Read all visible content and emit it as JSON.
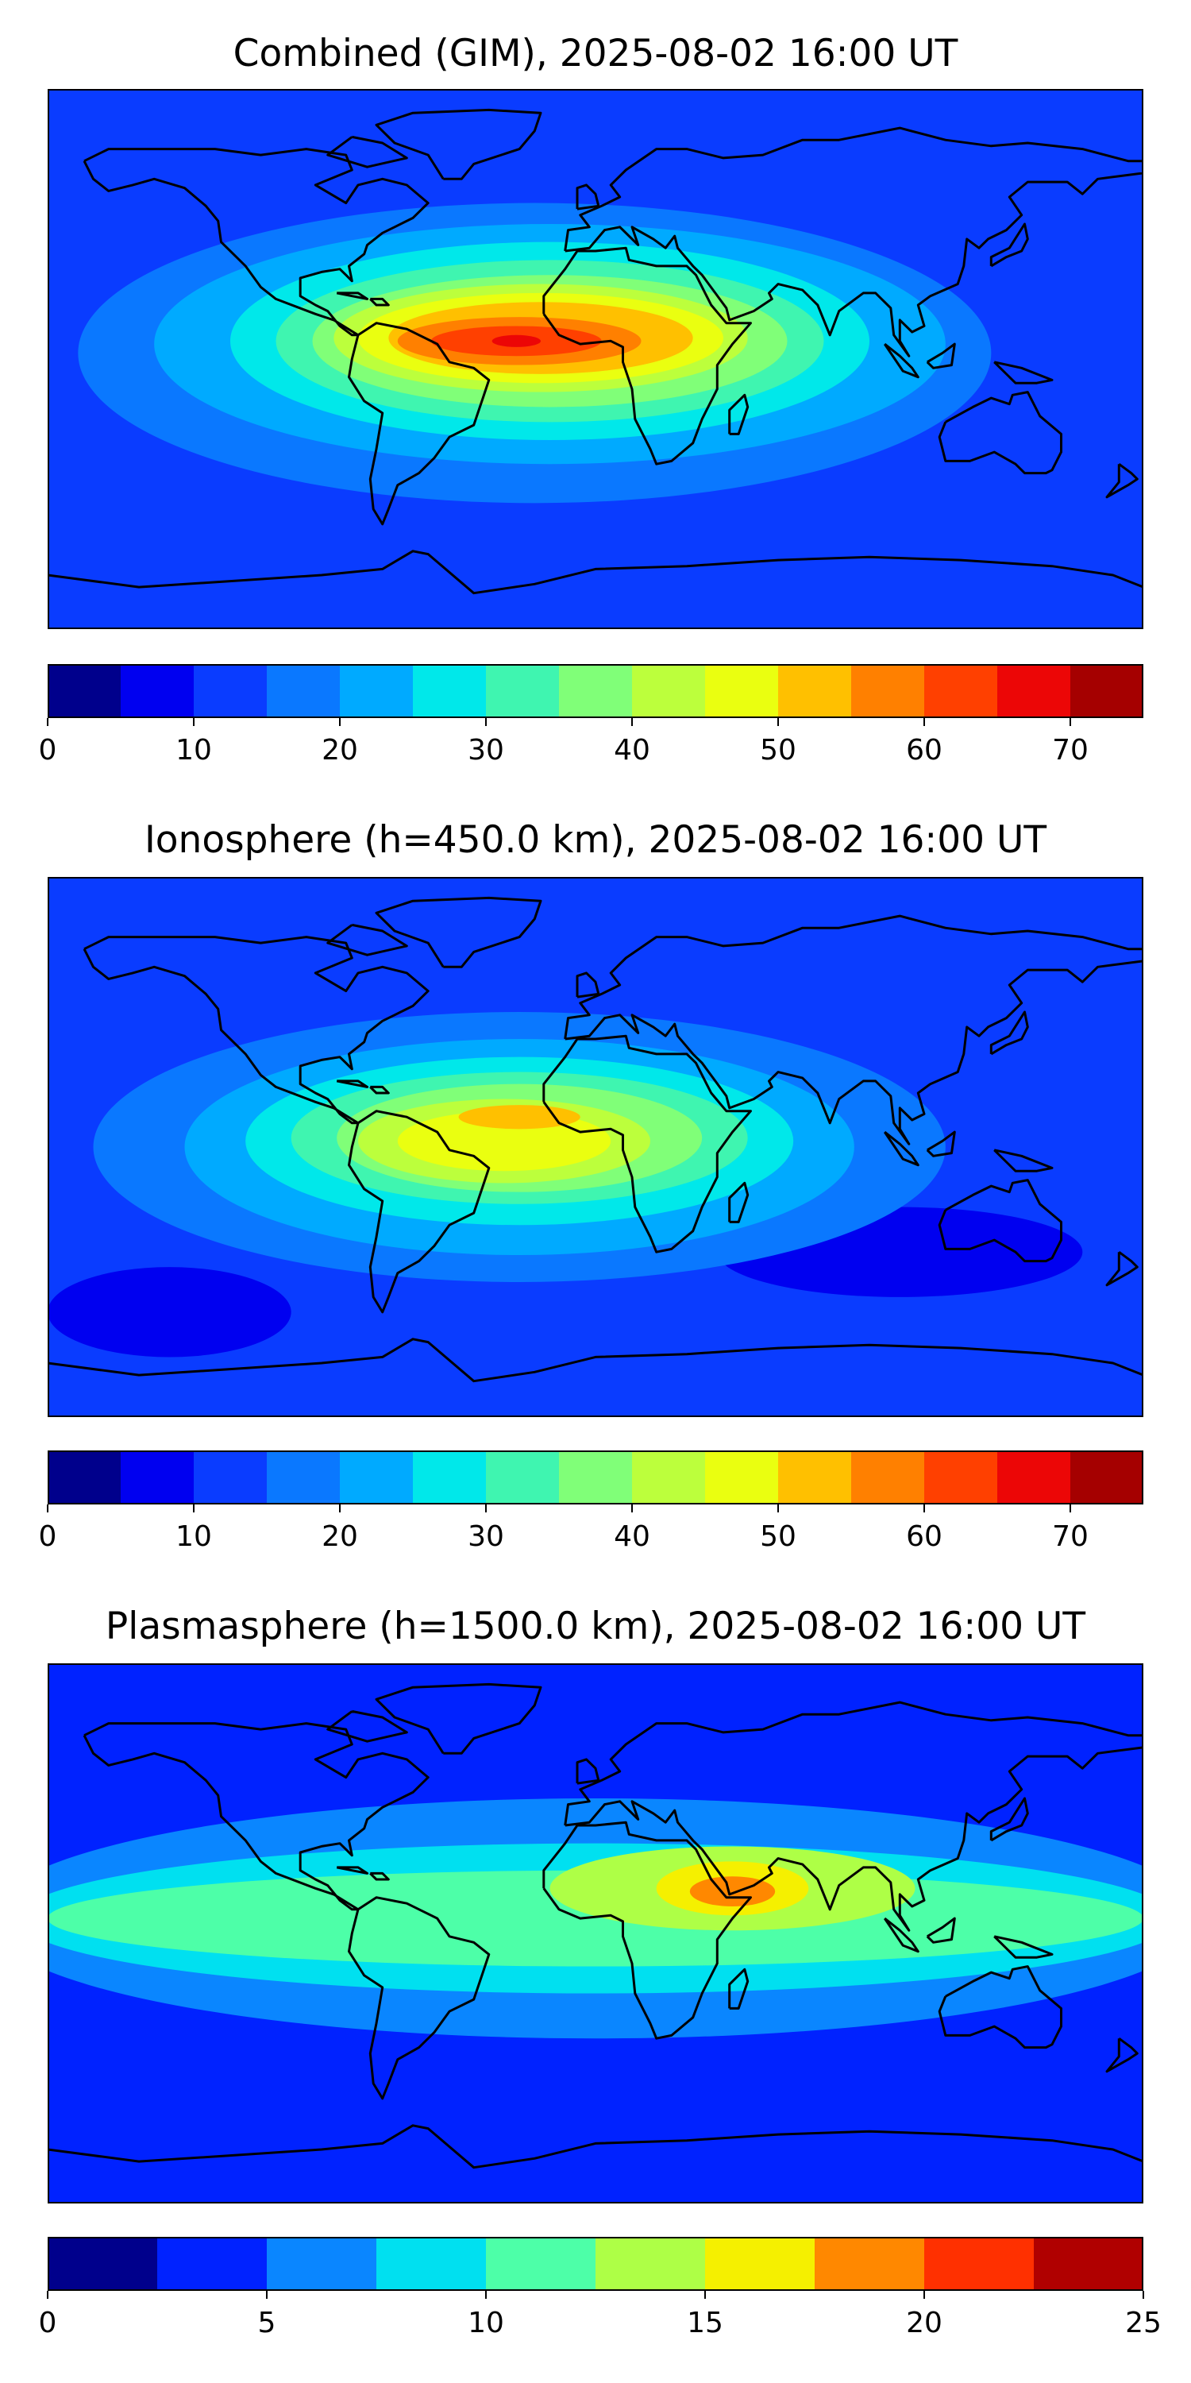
{
  "palette": [
    "#00008c",
    "#0000f0",
    "#0a3cff",
    "#0a78ff",
    "#00aaff",
    "#00e8ea",
    "#3ff5b0",
    "#80ff78",
    "#bcff3c",
    "#eaff10",
    "#ffc000",
    "#ff8000",
    "#ff4000",
    "#ec0606",
    "#a50000"
  ],
  "chart_data": [
    {
      "type": "contour-map",
      "title": "Combined (GIM), 2025-08-02 16:00 UT",
      "colorbar": {
        "min": 0,
        "max": 75,
        "step": 5,
        "ticks": [
          0,
          10,
          20,
          30,
          40,
          50,
          60,
          70
        ]
      },
      "background_level": 2,
      "features": [
        {
          "lon": -20,
          "lat": 2,
          "rx": 150,
          "ry": 50,
          "level": 3
        },
        {
          "lon": -15,
          "lat": 5,
          "rx": 130,
          "ry": 40,
          "level": 4
        },
        {
          "lon": -15,
          "lat": 6,
          "rx": 105,
          "ry": 33,
          "level": 5
        },
        {
          "lon": -15,
          "lat": 6,
          "rx": 90,
          "ry": 27,
          "level": 6
        },
        {
          "lon": -15,
          "lat": 6,
          "rx": 78,
          "ry": 22,
          "level": 7
        },
        {
          "lon": -18,
          "lat": 7,
          "rx": 68,
          "ry": 18,
          "level": 8
        },
        {
          "lon": -18,
          "lat": 7,
          "rx": 60,
          "ry": 15,
          "level": 9
        },
        {
          "lon": -18,
          "lat": 7,
          "rx": 50,
          "ry": 12,
          "level": 10
        },
        {
          "lon": -25,
          "lat": 6,
          "rx": 40,
          "ry": 8,
          "level": 11
        },
        {
          "lon": -26,
          "lat": 6,
          "rx": 28,
          "ry": 5,
          "level": 12
        },
        {
          "lon": -26,
          "lat": 6,
          "rx": 8,
          "ry": 2,
          "level": 13
        }
      ]
    },
    {
      "type": "contour-map",
      "title": "Ionosphere  (h=450.0 km), 2025-08-02 16:00 UT",
      "colorbar": {
        "min": 0,
        "max": 75,
        "step": 5,
        "ticks": [
          0,
          10,
          20,
          30,
          40,
          50,
          60,
          70
        ]
      },
      "background_level": 2,
      "features": [
        {
          "lon": -140,
          "lat": -55,
          "rx": 40,
          "ry": 15,
          "level": 1
        },
        {
          "lon": 100,
          "lat": -35,
          "rx": 60,
          "ry": 15,
          "level": 1
        },
        {
          "lon": -25,
          "lat": 0,
          "rx": 140,
          "ry": 45,
          "level": 3
        },
        {
          "lon": -25,
          "lat": 0,
          "rx": 110,
          "ry": 36,
          "level": 4
        },
        {
          "lon": -25,
          "lat": 2,
          "rx": 90,
          "ry": 28,
          "level": 5
        },
        {
          "lon": -25,
          "lat": 3,
          "rx": 75,
          "ry": 22,
          "level": 6
        },
        {
          "lon": -25,
          "lat": 3,
          "rx": 60,
          "ry": 18,
          "level": 7
        },
        {
          "lon": -30,
          "lat": 2,
          "rx": 48,
          "ry": 14,
          "level": 8
        },
        {
          "lon": -30,
          "lat": 2,
          "rx": 35,
          "ry": 10,
          "level": 9
        },
        {
          "lon": -25,
          "lat": 10,
          "rx": 20,
          "ry": 4,
          "level": 10
        }
      ]
    },
    {
      "type": "contour-map",
      "title": "Plasmasphere (h=1500.0 km), 2025-08-02 16:00 UT",
      "colorbar": {
        "min": 0,
        "max": 25,
        "step": 2.5,
        "ticks": [
          0,
          5,
          10,
          15,
          20,
          25
        ]
      },
      "background_level": 1,
      "features": [
        {
          "lon": 0,
          "lat": 5,
          "rx": 200,
          "ry": 40,
          "level": 2
        },
        {
          "lon": 0,
          "lat": 5,
          "rx": 190,
          "ry": 25,
          "level": 3
        },
        {
          "lon": 0,
          "lat": 5,
          "rx": 180,
          "ry": 16,
          "level": 4
        },
        {
          "lon": 45,
          "lat": 15,
          "rx": 60,
          "ry": 14,
          "level": 5
        },
        {
          "lon": 45,
          "lat": 15,
          "rx": 25,
          "ry": 9,
          "level": 6
        },
        {
          "lon": 45,
          "lat": 14,
          "rx": 14,
          "ry": 5,
          "level": 7
        }
      ]
    }
  ]
}
